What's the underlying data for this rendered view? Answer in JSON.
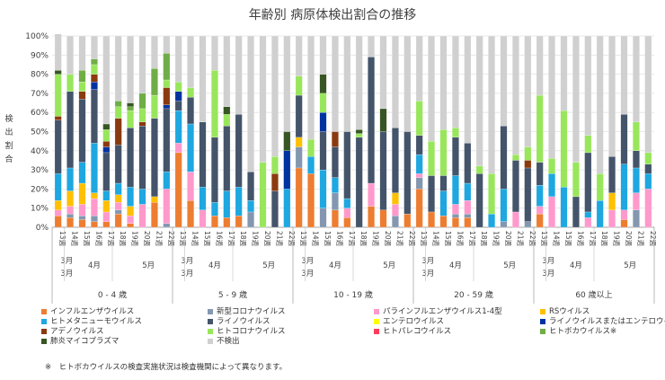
{
  "chart_data": {
    "type": "bar",
    "stacked": true,
    "title": "年齢別 病原体検出割合の推移",
    "ylabel": "検出割合",
    "ylim": [
      0,
      100
    ],
    "yticks": [
      "0%",
      "10%",
      "20%",
      "30%",
      "40%",
      "50%",
      "60%",
      "70%",
      "80%",
      "90%",
      "100%"
    ],
    "groups": [
      {
        "label": "0 - 4 歳",
        "weeks": [
          13,
          14,
          15,
          16,
          17,
          18,
          19,
          20,
          21,
          22
        ]
      },
      {
        "label": "5 - 9 歳",
        "weeks": [
          13,
          14,
          15,
          16,
          17,
          18,
          19,
          20,
          21,
          22
        ]
      },
      {
        "label": "10 - 19 歳",
        "weeks": [
          13,
          14,
          15,
          16,
          17,
          18,
          19,
          20,
          21,
          22
        ]
      },
      {
        "label": "20 - 59 歳",
        "weeks": [
          13,
          14,
          15,
          16,
          17,
          18,
          19,
          20,
          21,
          22
        ]
      },
      {
        "label": "60 歳以上",
        "weeks": [
          13,
          14,
          15,
          16,
          17,
          18,
          19,
          20,
          21,
          22
        ]
      }
    ],
    "week_label_suffix": "週",
    "month_labels": {
      "march": "3月",
      "april": "4月",
      "may": "5月"
    },
    "series": [
      {
        "name": "インフルエンザウイルス",
        "color": "#ED7D31"
      },
      {
        "name": "新型コロナウイルス",
        "color": "#8497B0"
      },
      {
        "name": "パラインフルエンザウイルス1-4型",
        "color": "#FF99CC"
      },
      {
        "name": "RSウイルス",
        "color": "#FFC000"
      },
      {
        "name": "ヒトメタニューモウイルス",
        "color": "#1EA7E0"
      },
      {
        "name": "ライノウイルス",
        "color": "#44546A"
      },
      {
        "name": "エンテロウイルス",
        "color": "#FFFF00"
      },
      {
        "name": "ライノウイルスまたはエンテロウイルス",
        "color": "#0033A0"
      },
      {
        "name": "アデノウイルス",
        "color": "#8B3A0F"
      },
      {
        "name": "ヒトコロナウイルス",
        "color": "#99E65C"
      },
      {
        "name": "ヒトパレコウイルス",
        "color": "#FF3B5C"
      },
      {
        "name": "ヒトボカウイルス※",
        "color": "#70AD47"
      },
      {
        "name": "肺炎マイコプラズマ",
        "color": "#375623"
      },
      {
        "name": "不検出",
        "color": "#D0D0D0"
      }
    ],
    "values": [
      [
        [
          6,
          0,
          3,
          5,
          14,
          28,
          0,
          0,
          2,
          22,
          0,
          0,
          2,
          19
        ],
        [
          5,
          2,
          4,
          8,
          12,
          40,
          0,
          0,
          0,
          9,
          0,
          0,
          0,
          20
        ],
        [
          4,
          2,
          6,
          11,
          11,
          33,
          0,
          0,
          4,
          5,
          0,
          6,
          0,
          18
        ],
        [
          3,
          3,
          9,
          3,
          26,
          28,
          0,
          4,
          4,
          5,
          0,
          3,
          0,
          12
        ],
        [
          3,
          0,
          5,
          6,
          5,
          20,
          0,
          3,
          3,
          6,
          0,
          0,
          3,
          46
        ],
        [
          7,
          2,
          4,
          4,
          6,
          20,
          0,
          0,
          14,
          6,
          0,
          3,
          0,
          34
        ],
        [
          2,
          0,
          4,
          5,
          10,
          31,
          0,
          0,
          0,
          9,
          0,
          2,
          2,
          35
        ],
        [
          0,
          0,
          12,
          0,
          8,
          33,
          0,
          0,
          2,
          7,
          0,
          8,
          0,
          30
        ],
        [
          13,
          0,
          0,
          3,
          0,
          41,
          0,
          0,
          0,
          12,
          0,
          14,
          0,
          17
        ],
        [
          0,
          2,
          18,
          0,
          9,
          33,
          0,
          2,
          9,
          4,
          0,
          14,
          0,
          9
        ]
      ],
      [
        [
          39,
          0,
          5,
          0,
          17,
          5,
          0,
          5,
          0,
          5,
          0,
          0,
          0,
          24
        ],
        [
          14,
          0,
          15,
          0,
          25,
          14,
          0,
          0,
          0,
          5,
          0,
          0,
          0,
          27
        ],
        [
          0,
          0,
          9,
          0,
          12,
          34,
          0,
          0,
          0,
          0,
          0,
          0,
          0,
          45
        ],
        [
          6,
          0,
          0,
          0,
          7,
          34,
          0,
          0,
          0,
          35,
          0,
          0,
          0,
          18
        ],
        [
          5,
          0,
          0,
          0,
          14,
          34,
          0,
          0,
          0,
          6,
          0,
          0,
          4,
          37
        ],
        [
          6,
          0,
          0,
          0,
          15,
          38,
          0,
          0,
          0,
          0,
          0,
          0,
          0,
          41
        ],
        [
          0,
          8,
          0,
          0,
          6,
          15,
          0,
          0,
          0,
          0,
          0,
          0,
          0,
          71
        ],
        [
          0,
          0,
          0,
          0,
          0,
          0,
          0,
          0,
          0,
          34,
          0,
          0,
          0,
          66
        ],
        [
          0,
          0,
          0,
          0,
          0,
          19,
          0,
          0,
          9,
          9,
          0,
          0,
          0,
          63
        ],
        [
          0,
          0,
          0,
          0,
          20,
          0,
          0,
          20,
          0,
          0,
          0,
          0,
          10,
          50
        ]
      ],
      [
        [
          31,
          11,
          0,
          5,
          0,
          22,
          0,
          0,
          0,
          10,
          0,
          0,
          0,
          21
        ],
        [
          28,
          0,
          0,
          0,
          9,
          0,
          0,
          0,
          0,
          9,
          0,
          0,
          0,
          54
        ],
        [
          0,
          10,
          0,
          0,
          20,
          20,
          0,
          10,
          0,
          10,
          0,
          0,
          10,
          20
        ],
        [
          9,
          9,
          0,
          0,
          8,
          16,
          0,
          0,
          8,
          0,
          0,
          0,
          0,
          50
        ],
        [
          5,
          0,
          5,
          0,
          5,
          35,
          0,
          0,
          0,
          0,
          0,
          0,
          0,
          50
        ],
        [
          0,
          0,
          0,
          0,
          0,
          47,
          0,
          0,
          0,
          2,
          0,
          0,
          2,
          49
        ],
        [
          11,
          0,
          12,
          0,
          0,
          66,
          0,
          0,
          0,
          0,
          0,
          0,
          0,
          11
        ],
        [
          9,
          0,
          0,
          0,
          0,
          41,
          0,
          0,
          0,
          0,
          0,
          0,
          12,
          38
        ],
        [
          0,
          6,
          6,
          6,
          0,
          34,
          0,
          0,
          0,
          0,
          0,
          0,
          0,
          48
        ],
        [
          7,
          0,
          0,
          0,
          0,
          43,
          0,
          0,
          0,
          0,
          0,
          0,
          0,
          50
        ]
      ],
      [
        [
          20,
          6,
          2,
          0,
          10,
          10,
          0,
          0,
          0,
          18,
          0,
          0,
          0,
          34
        ],
        [
          8,
          0,
          0,
          0,
          0,
          19,
          0,
          0,
          0,
          18,
          0,
          0,
          0,
          55
        ],
        [
          6,
          0,
          0,
          0,
          13,
          8,
          0,
          0,
          0,
          24,
          0,
          0,
          0,
          49
        ],
        [
          5,
          2,
          5,
          0,
          15,
          20,
          0,
          0,
          0,
          5,
          0,
          0,
          0,
          48
        ],
        [
          5,
          2,
          7,
          0,
          9,
          21,
          0,
          0,
          0,
          0,
          0,
          0,
          0,
          56
        ],
        [
          0,
          0,
          0,
          0,
          0,
          28,
          0,
          0,
          0,
          4,
          0,
          0,
          0,
          68
        ],
        [
          0,
          0,
          0,
          0,
          7,
          0,
          0,
          0,
          0,
          21,
          0,
          0,
          0,
          72
        ],
        [
          0,
          3,
          0,
          0,
          17,
          33,
          0,
          0,
          0,
          0,
          0,
          0,
          0,
          47
        ],
        [
          0,
          0,
          8,
          0,
          0,
          27,
          0,
          0,
          0,
          3,
          0,
          0,
          0,
          62
        ],
        [
          0,
          3,
          0,
          0,
          0,
          28,
          0,
          0,
          4,
          7,
          0,
          0,
          0,
          58
        ]
      ],
      [
        [
          7,
          0,
          4,
          0,
          11,
          12,
          0,
          0,
          0,
          35,
          0,
          0,
          0,
          31
        ],
        [
          0,
          0,
          16,
          0,
          12,
          0,
          0,
          0,
          0,
          8,
          0,
          0,
          0,
          64
        ],
        [
          0,
          0,
          0,
          0,
          21,
          0,
          0,
          0,
          0,
          40,
          0,
          0,
          0,
          39
        ],
        [
          0,
          0,
          0,
          0,
          0,
          16,
          0,
          0,
          0,
          18,
          0,
          0,
          0,
          66
        ],
        [
          0,
          0,
          5,
          0,
          3,
          31,
          0,
          0,
          0,
          9,
          0,
          0,
          0,
          52
        ],
        [
          0,
          0,
          0,
          0,
          14,
          0,
          0,
          0,
          0,
          14,
          0,
          0,
          0,
          72
        ],
        [
          0,
          0,
          9,
          9,
          0,
          19,
          0,
          0,
          0,
          0,
          0,
          0,
          0,
          63
        ],
        [
          4,
          0,
          5,
          0,
          24,
          26,
          0,
          0,
          0,
          0,
          0,
          0,
          0,
          41
        ],
        [
          0,
          9,
          9,
          0,
          13,
          9,
          0,
          0,
          0,
          15,
          0,
          0,
          0,
          45
        ],
        [
          0,
          0,
          20,
          0,
          8,
          5,
          0,
          0,
          0,
          6,
          0,
          0,
          0,
          61
        ]
      ]
    ],
    "footnote": "※　ヒトボカウイルスの検査実施状況は検査機関によって異なります。"
  }
}
